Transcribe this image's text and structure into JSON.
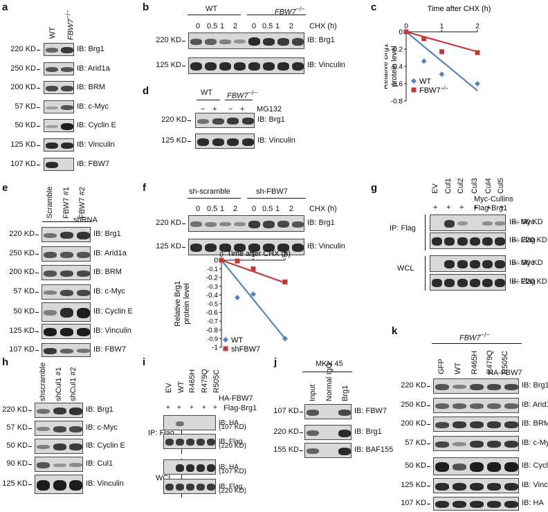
{
  "panel_letters": {
    "a": "a",
    "b": "b",
    "c": "c",
    "d": "d",
    "e": "e",
    "f": "f",
    "g": "g",
    "h": "h",
    "i": "i",
    "j": "j",
    "k": "k"
  },
  "panel_a": {
    "lanes": [
      "WT",
      "FBW7"
    ],
    "lane2_sup": "−/−",
    "rows": [
      {
        "kd": "220 KD",
        "ib": "IB: Brg1"
      },
      {
        "kd": "250 KD",
        "ib": "IB: Arid1a"
      },
      {
        "kd": "200 KD",
        "ib": "IB: BRM"
      },
      {
        "kd": "57 KD",
        "ib": "IB: c-Myc"
      },
      {
        "kd": "50 KD",
        "ib": "IB: Cyclin E"
      },
      {
        "kd": "125 KD",
        "ib": "IB: Vinculin"
      },
      {
        "kd": "107 KD",
        "ib": "IB: FBW7"
      }
    ]
  },
  "panel_b": {
    "group1": "WT",
    "group2": "FBW7",
    "group2_sup": "−/−",
    "times": [
      "0",
      "0.5",
      "1",
      "2",
      "0",
      "0.5",
      "1",
      "2"
    ],
    "unit": "CHX (h)",
    "rows": [
      {
        "kd": "220 KD",
        "ib": "IB: Brg1"
      },
      {
        "kd": "125 KD",
        "ib": "IB: Vinculin"
      }
    ]
  },
  "panel_d": {
    "group1": "WT",
    "group2": "FBW7",
    "group2_sup": "−/−",
    "signs": [
      "−",
      "+",
      "−",
      "+"
    ],
    "treatment": "MG132",
    "rows": [
      {
        "kd": "220 KD",
        "ib": "IB: Brg1"
      },
      {
        "kd": "125 KD",
        "ib": "IB: Vinculin"
      }
    ]
  },
  "panel_e": {
    "lanes": [
      "Scramble",
      "FBW7 #1",
      "FBW7 #2"
    ],
    "group": "shRNA",
    "rows": [
      {
        "kd": "220 KD",
        "ib": "IB: Brg1"
      },
      {
        "kd": "250 KD",
        "ib": "IB: Arid1a"
      },
      {
        "kd": "200 KD",
        "ib": "IB: BRM"
      },
      {
        "kd": "57 KD",
        "ib": "IB: c-Myc"
      },
      {
        "kd": "50 KD",
        "ib": "IB: Cyclin E"
      },
      {
        "kd": "125 KD",
        "ib": "IB: Vinculin"
      },
      {
        "kd": "107 KD",
        "ib": "IB: FBW7"
      }
    ]
  },
  "panel_f": {
    "group1": "sh-scramble",
    "group2": "sh-FBW7",
    "times": [
      "0",
      "0.5",
      "1",
      "2",
      "0",
      "0.5",
      "1",
      "2"
    ],
    "unit": "CHX (h)",
    "rows": [
      {
        "kd": "220 KD",
        "ib": "IB: Brg1"
      },
      {
        "kd": "125 KD",
        "ib": "IB: Vinculin"
      }
    ]
  },
  "panel_g": {
    "lanes": [
      "EV",
      "Cul1",
      "Cul2",
      "Cul3",
      "Cul4",
      "Cul5"
    ],
    "plus": [
      "+",
      "+",
      "+",
      "+",
      "+",
      "+"
    ],
    "label_line1": "Myc-Cullins",
    "label_line2": "Flag-Brg1",
    "ip": "IP: Flag",
    "wcl": "WCL",
    "rows": [
      {
        "ib": "IB: Myc",
        "mw": "— 90 KD"
      },
      {
        "ib": "IB: Flag",
        "mw": "— 220 KD"
      },
      {
        "ib": "IB: Myc",
        "mw": "— 90 KD"
      },
      {
        "ib": "IB: Flag",
        "mw": "— 220 KD"
      }
    ]
  },
  "panel_h": {
    "lanes": [
      "shscramble",
      "shCul1 #1",
      "shCul1 #2"
    ],
    "rows": [
      {
        "kd": "220 KD",
        "ib": "IB: Brg1"
      },
      {
        "kd": "57 KD",
        "ib": "IB: c-Myc"
      },
      {
        "kd": "50 KD",
        "ib": "IB: Cyclin E"
      },
      {
        "kd": "90 KD",
        "ib": "IB: Cul1"
      },
      {
        "kd": "125 KD",
        "ib": "IB: Vinculin"
      }
    ]
  },
  "panel_i": {
    "lanes": [
      "EV",
      "WT",
      "R465H",
      "R479Q",
      "R505C"
    ],
    "plus": [
      "+",
      "+",
      "+",
      "+",
      "+"
    ],
    "label_line1": "HA-FBW7",
    "label_line2": "Flag-Brg1",
    "ip": "IP: Flag",
    "wcl": "WCL",
    "rows": [
      {
        "ib": "IB: HA",
        "mw": "(107 KD)"
      },
      {
        "ib": "IB: Flag",
        "mw": "(220 KD)"
      },
      {
        "ib": "IB: HA",
        "mw": "(107 KD)"
      },
      {
        "ib": "IB: Flag",
        "mw": "(220 KD)"
      }
    ]
  },
  "panel_j": {
    "cell_line": "MKN 45",
    "lanes": [
      "Input",
      "Normal IgG",
      "Brg1"
    ],
    "rows": [
      {
        "kd": "107 KD",
        "ib": "IB: FBW7"
      },
      {
        "kd": "220 KD",
        "ib": "IB: Brg1"
      },
      {
        "kd": "155 KD",
        "ib": "IB: BAF155"
      }
    ]
  },
  "panel_k": {
    "group": "FBW7",
    "group_sup": "−/−",
    "lanes": [
      "GFP",
      "WT",
      "R465H",
      "R479Q",
      "R505C"
    ],
    "label": "HA-FBW7",
    "rows": [
      {
        "kd": "220 KD",
        "ib": "IB: Brg1"
      },
      {
        "kd": "250 KD",
        "ib": "IB: Arid1a"
      },
      {
        "kd": "200 KD",
        "ib": "IB: BRM"
      },
      {
        "kd": "57 KD",
        "ib": "IB: c-Myc"
      },
      {
        "kd": "50 KD",
        "ib": "IB: Cyclin E"
      },
      {
        "kd": "125 KD",
        "ib": "IB: Vinculin"
      },
      {
        "kd": "107 KD",
        "ib": "IB: HA"
      }
    ]
  },
  "chart_data": [
    {
      "type": "line",
      "panel": "c",
      "title": "Time after CHX (h)",
      "xlabel": "Time after CHX (h)",
      "ylabel": "Relative Brg1 protein level",
      "xlim": [
        0,
        2
      ],
      "ylim": [
        -0.8,
        0
      ],
      "xticks": [
        "0",
        "1",
        "2"
      ],
      "yticks": [
        "0",
        "-0.2",
        "-0.4",
        "-0.6",
        "-0.8"
      ],
      "legend_position": "bottom-left",
      "series": [
        {
          "name": "WT",
          "color": "#4f86c0",
          "marker": "diamond",
          "x": [
            0,
            0.5,
            1,
            2
          ],
          "y": [
            0,
            -0.34,
            -0.49,
            -0.6
          ],
          "fit": [
            [
              0,
              0
            ],
            [
              2,
              -0.68
            ]
          ]
        },
        {
          "name": "FBW7",
          "name_sup": "−/−",
          "color": "#c0393b",
          "marker": "square",
          "x": [
            0,
            0.5,
            1,
            2
          ],
          "y": [
            0,
            -0.08,
            -0.23,
            -0.24
          ],
          "fit": [
            [
              0,
              0
            ],
            [
              2,
              -0.23
            ]
          ]
        }
      ]
    },
    {
      "type": "line",
      "panel": "f",
      "title": "Time after CHX (h)",
      "xlabel": "Time after CHX (h)",
      "ylabel": "Relative Brg1 protein level",
      "xlim": [
        0,
        2
      ],
      "ylim": [
        -1,
        0
      ],
      "xticks": [
        "0",
        "1",
        "2"
      ],
      "yticks": [
        "0",
        "-0.1",
        "-0.2",
        "-0.3",
        "-0.4",
        "-0.5",
        "-0.6",
        "-0.7",
        "-0.8",
        "-0.9",
        "-1"
      ],
      "legend_position": "bottom-left",
      "series": [
        {
          "name": "WT",
          "color": "#4f86c0",
          "marker": "diamond",
          "x": [
            0,
            0.5,
            1,
            2
          ],
          "y": [
            0,
            -0.43,
            -0.39,
            -0.9
          ],
          "fit": [
            [
              0,
              0
            ],
            [
              2,
              -0.9
            ]
          ]
        },
        {
          "name": "shFBW7",
          "color": "#c0393b",
          "marker": "square",
          "x": [
            0,
            0.5,
            1,
            2
          ],
          "y": [
            0,
            -0.01,
            -0.1,
            -0.25
          ],
          "fit": [
            [
              0,
              0
            ],
            [
              2,
              -0.26
            ]
          ]
        }
      ]
    }
  ]
}
